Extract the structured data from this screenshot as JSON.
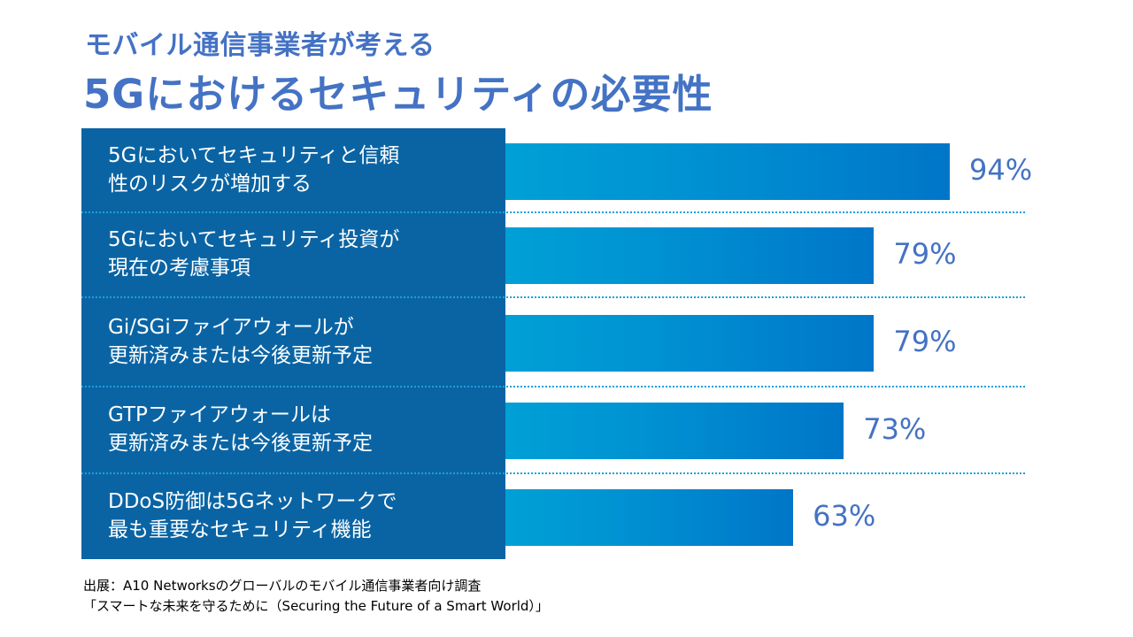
{
  "title": {
    "line1": "モバイル通信事業者が考える",
    "line2": "5Gにおけるセキュリティの必要性"
  },
  "chart_data": {
    "type": "bar",
    "orientation": "horizontal",
    "title": "モバイル通信事業者が考える 5Gにおけるセキュリティの必要性",
    "categories": [
      "5Gにおいてセキュリティと信頼性のリスクが増加する",
      "5Gにおいてセキュリティ投資が現在の考慮事項",
      "Gi/SGiファイアウォールが更新済みまたは今後更新予定",
      "GTPファイアウォールは更新済みまたは今後更新予定",
      "DDoS防御は5Gネットワークで最も重要なセキュリティ機能"
    ],
    "category_lines": [
      "5Gにおいてセキュリティと信頼\n性のリスクが増加する",
      "5Gにおいてセキュリティ投資が\n現在の考慮事項",
      "Gi/SGiファイアウォールが\n更新済みまたは今後更新予定",
      "GTPファイアウォールは\n更新済みまたは今後更新予定",
      "DDoS防御は5Gネットワークで\n最も重要なセキュリティ機能"
    ],
    "values": [
      94,
      79,
      79,
      73,
      63
    ],
    "value_labels": [
      "94%",
      "79%",
      "79%",
      "73%",
      "63%"
    ],
    "unit": "%",
    "xlabel": "",
    "ylabel": "",
    "xlim": [
      0,
      100
    ],
    "grid": false,
    "legend": "none",
    "colors": {
      "bar_start": "#00A0D6",
      "bar_end": "#0076C8",
      "panel": "#0A64A4",
      "value_text": "#4472C4",
      "divider": "#1BA1DB"
    }
  },
  "source": {
    "line1": "出展：A10 Networksのグローバルのモバイル通信事業者向け調査",
    "line2": "「スマートな未来を守るために（Securing the Future of a Smart World）」"
  }
}
